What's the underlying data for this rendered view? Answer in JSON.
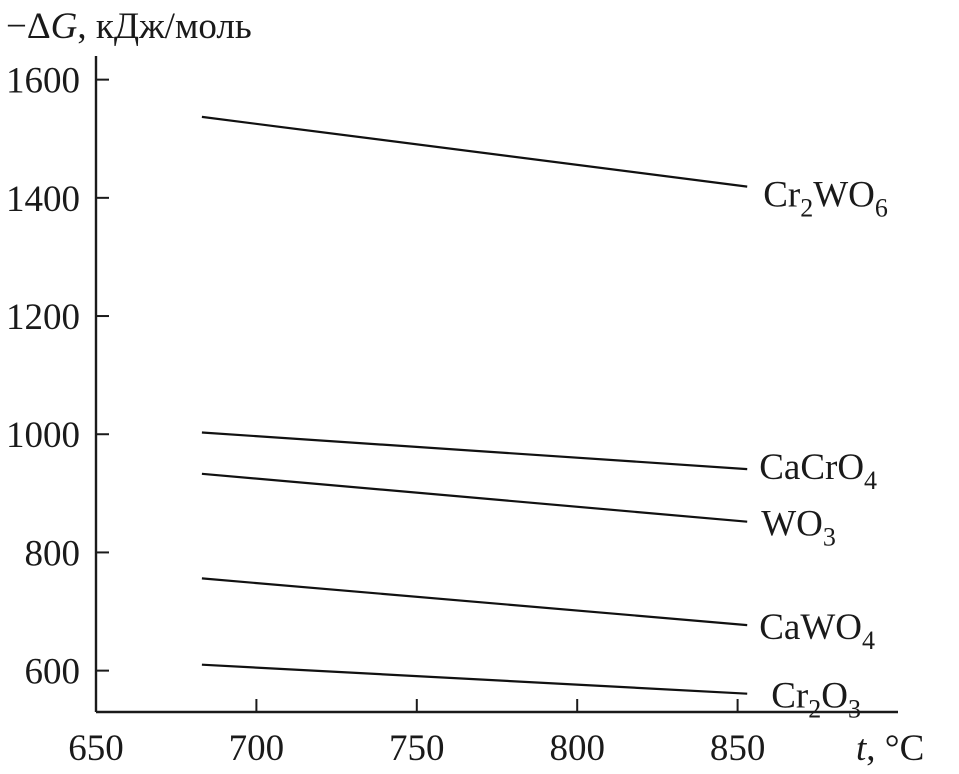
{
  "chart_data": {
    "type": "line",
    "ylabel_parts": [
      "−Δ",
      "G",
      ", кДж/моль"
    ],
    "xlabel_parts": [
      "t",
      ", °C"
    ],
    "xlim": [
      650,
      900
    ],
    "ylim": [
      530,
      1640
    ],
    "xticks": [
      650,
      700,
      750,
      800,
      850
    ],
    "yticks": [
      600,
      800,
      1000,
      1200,
      1400,
      1600
    ],
    "series": [
      {
        "name_parts": [
          [
            "Cr",
            false
          ],
          [
            "2",
            true
          ],
          [
            "WO",
            false
          ],
          [
            "6",
            true
          ]
        ],
        "x": [
          683,
          853
        ],
        "y": [
          1537,
          1419
        ]
      },
      {
        "name_parts": [
          [
            "CaCrO",
            false
          ],
          [
            "4",
            true
          ]
        ],
        "x": [
          683,
          853
        ],
        "y": [
          1003,
          941
        ]
      },
      {
        "name_parts": [
          [
            "WO",
            false
          ],
          [
            "3",
            true
          ]
        ],
        "x": [
          683,
          853
        ],
        "y": [
          933,
          852
        ]
      },
      {
        "name_parts": [
          [
            "CaWO",
            false
          ],
          [
            "4",
            true
          ]
        ],
        "x": [
          683,
          853
        ],
        "y": [
          756,
          677
        ]
      },
      {
        "name_parts": [
          [
            "Cr",
            false
          ],
          [
            "2",
            true
          ],
          [
            "O",
            false
          ],
          [
            "3",
            true
          ]
        ],
        "x": [
          683,
          853
        ],
        "y": [
          610,
          561
        ]
      }
    ]
  }
}
